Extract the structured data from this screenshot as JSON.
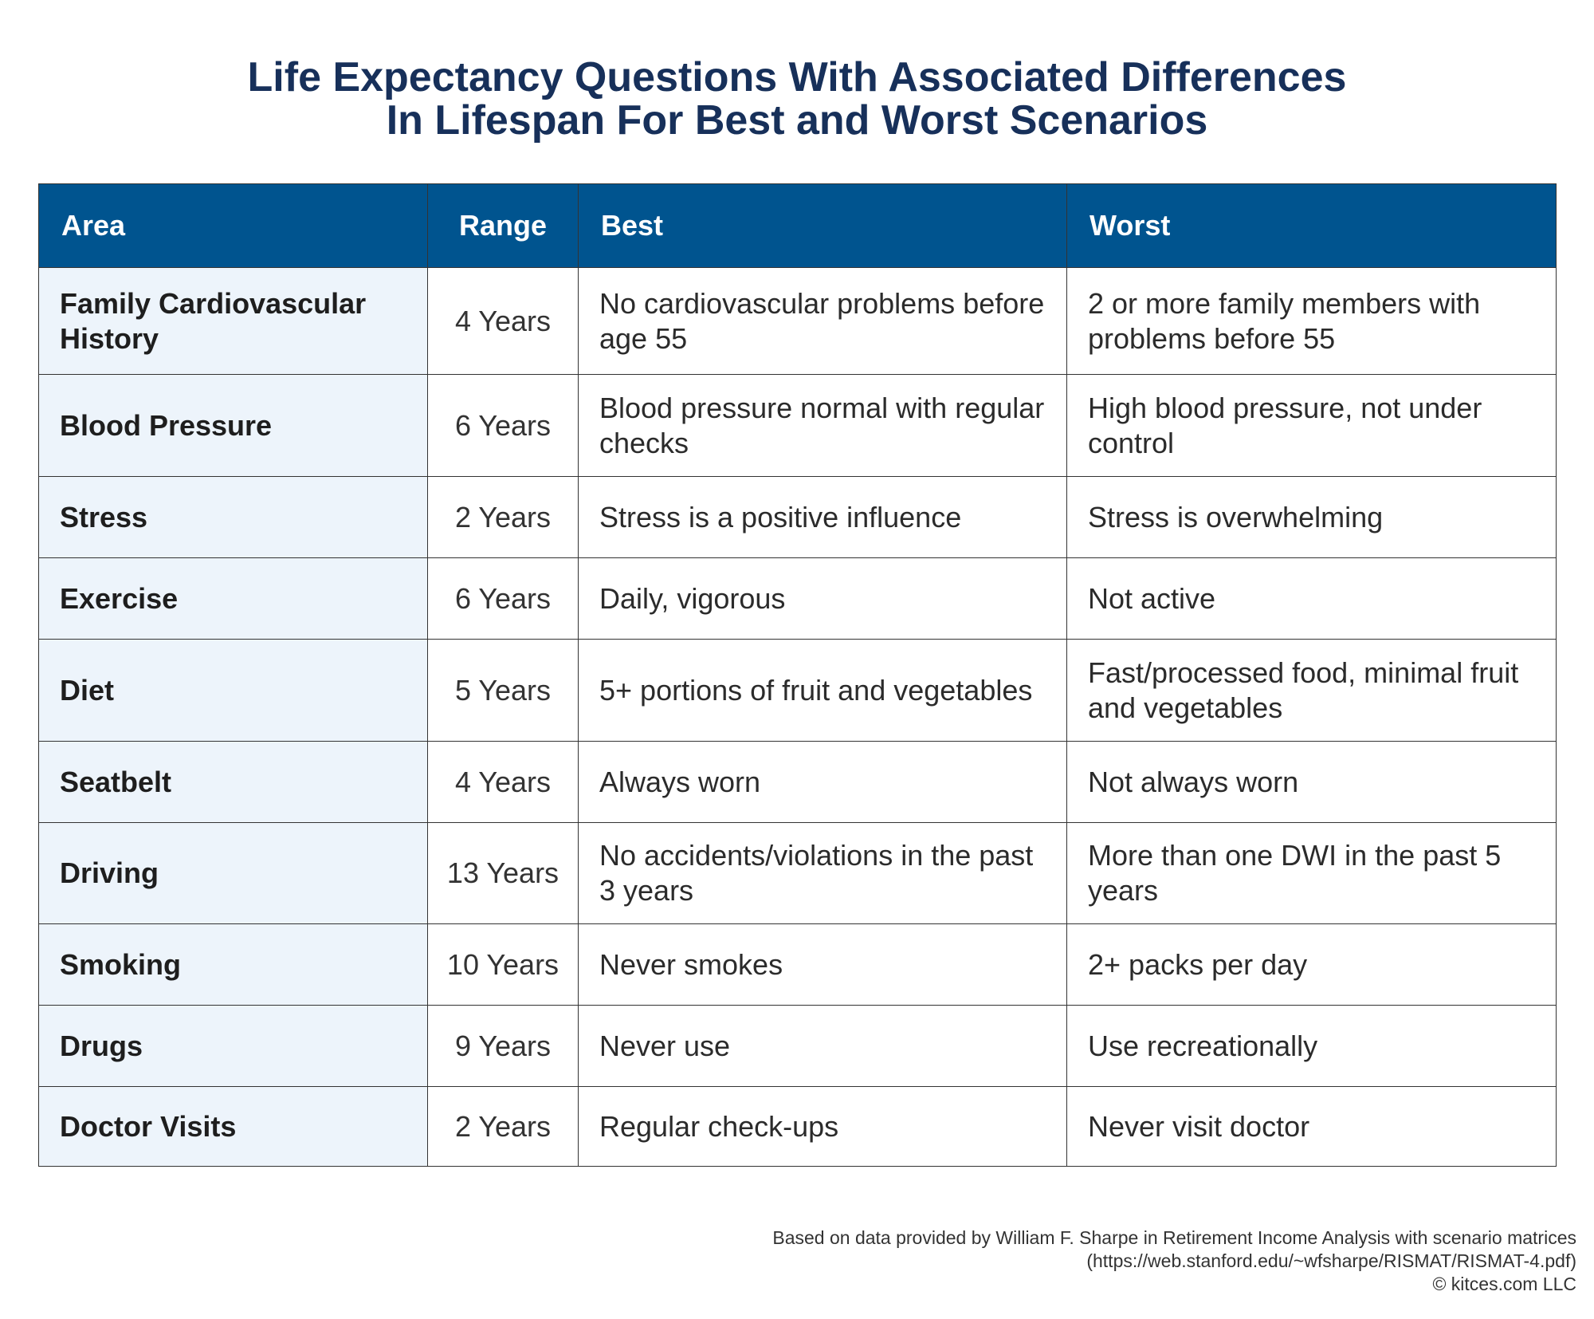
{
  "title": {
    "line1": "Life Expectancy Questions With Associated Differences",
    "line2": "In Lifespan For Best and Worst Scenarios"
  },
  "colors": {
    "header_bg": "#00548f",
    "title": "#17305a",
    "area_bg": "#edf4fb"
  },
  "table": {
    "headers": [
      "Area",
      "Range",
      "Best",
      "Worst"
    ],
    "rows": [
      {
        "area": "Family Cardiovascular History",
        "range": "4 Years",
        "best": "No cardiovascular problems before age 55",
        "worst": "2 or more family members with problems before 55"
      },
      {
        "area": "Blood Pressure",
        "range": "6 Years",
        "best": "Blood pressure normal with regular checks",
        "worst": "High blood pressure, not under control"
      },
      {
        "area": "Stress",
        "range": "2 Years",
        "best": "Stress is a positive influence",
        "worst": "Stress is overwhelming"
      },
      {
        "area": "Exercise",
        "range": "6 Years",
        "best": "Daily, vigorous",
        "worst": "Not active"
      },
      {
        "area": "Diet",
        "range": "5 Years",
        "best": "5+ portions of fruit and vegetables",
        "worst": "Fast/processed food, minimal fruit and vegetables"
      },
      {
        "area": "Seatbelt",
        "range": "4 Years",
        "best": "Always worn",
        "worst": "Not always worn"
      },
      {
        "area": "Driving",
        "range": "13 Years",
        "best": "No accidents/violations in the past 3 years",
        "worst": "More than one DWI in the past 5 years"
      },
      {
        "area": "Smoking",
        "range": "10 Years",
        "best": "Never smokes",
        "worst": "2+ packs per day"
      },
      {
        "area": "Drugs",
        "range": "9 Years",
        "best": "Never use",
        "worst": "Use recreationally"
      },
      {
        "area": "Doctor Visits",
        "range": "2 Years",
        "best": "Regular check-ups",
        "worst": "Never visit doctor"
      }
    ]
  },
  "footer": {
    "line1": "Based on data provided by William F. Sharpe in Retirement Income Analysis with scenario matrices",
    "line2": "(https://web.stanford.edu/~wfsharpe/RISMAT/RISMAT-4.pdf)",
    "line3": "© kitces.com LLC"
  }
}
